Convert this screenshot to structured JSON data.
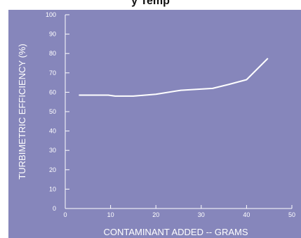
{
  "header": {
    "title_fragment": "y Temp"
  },
  "chart_data": {
    "type": "line",
    "title": "",
    "xlabel": "CONTAMINANT ADDED -- GRAMS",
    "ylabel": "TURBIMETRIC EFFICIENCY (%)",
    "xlim": [
      0,
      50
    ],
    "ylim": [
      0,
      100
    ],
    "x_ticks": [
      0,
      10,
      20,
      30,
      40,
      50
    ],
    "y_ticks": [
      0,
      10,
      20,
      30,
      40,
      50,
      60,
      70,
      80,
      90,
      100
    ],
    "grid": false,
    "series": [
      {
        "color": "#ffffff",
        "x": [
          3,
          6,
          9.5,
          11,
          15,
          20,
          25.5,
          29,
          32.5,
          36,
          40,
          44.7
        ],
        "y": [
          58.5,
          58.5,
          58.5,
          58,
          58,
          59,
          61,
          61.5,
          62,
          64,
          66.5,
          77.5
        ]
      }
    ]
  }
}
